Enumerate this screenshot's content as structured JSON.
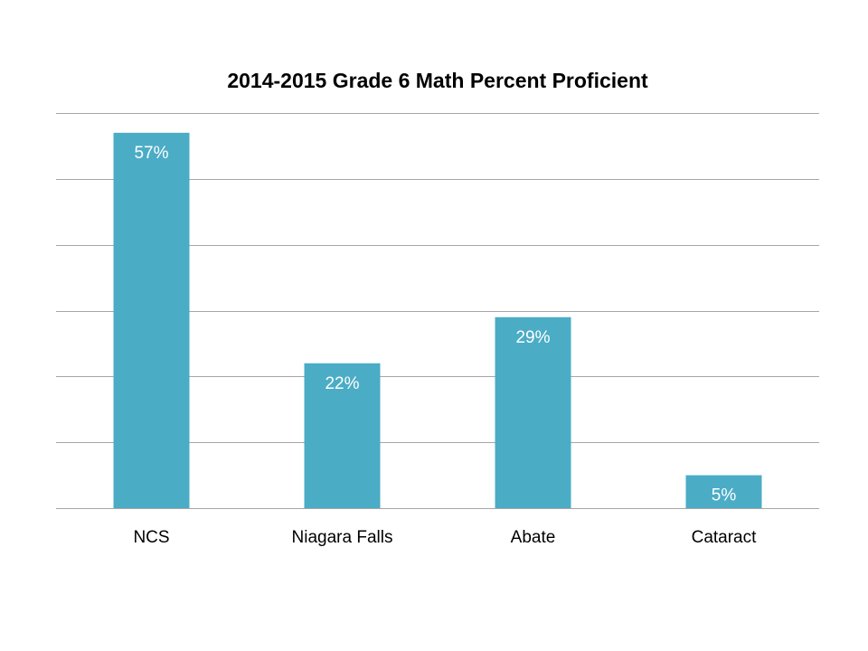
{
  "chart_data": {
    "type": "bar",
    "title": "2014-2015 Grade 6 Math Percent Proficient",
    "xlabel": "",
    "ylabel": "",
    "categories": [
      "NCS",
      "Niagara Falls",
      "Abate",
      "Cataract"
    ],
    "values": [
      57,
      22,
      29,
      5
    ],
    "data_labels": [
      "57%",
      "22%",
      "29%",
      "5%"
    ],
    "ylim": [
      0,
      60
    ],
    "grid": true,
    "legend": "none",
    "bar_color": "#4BACC6",
    "grid_color": "#A6A6A6"
  }
}
